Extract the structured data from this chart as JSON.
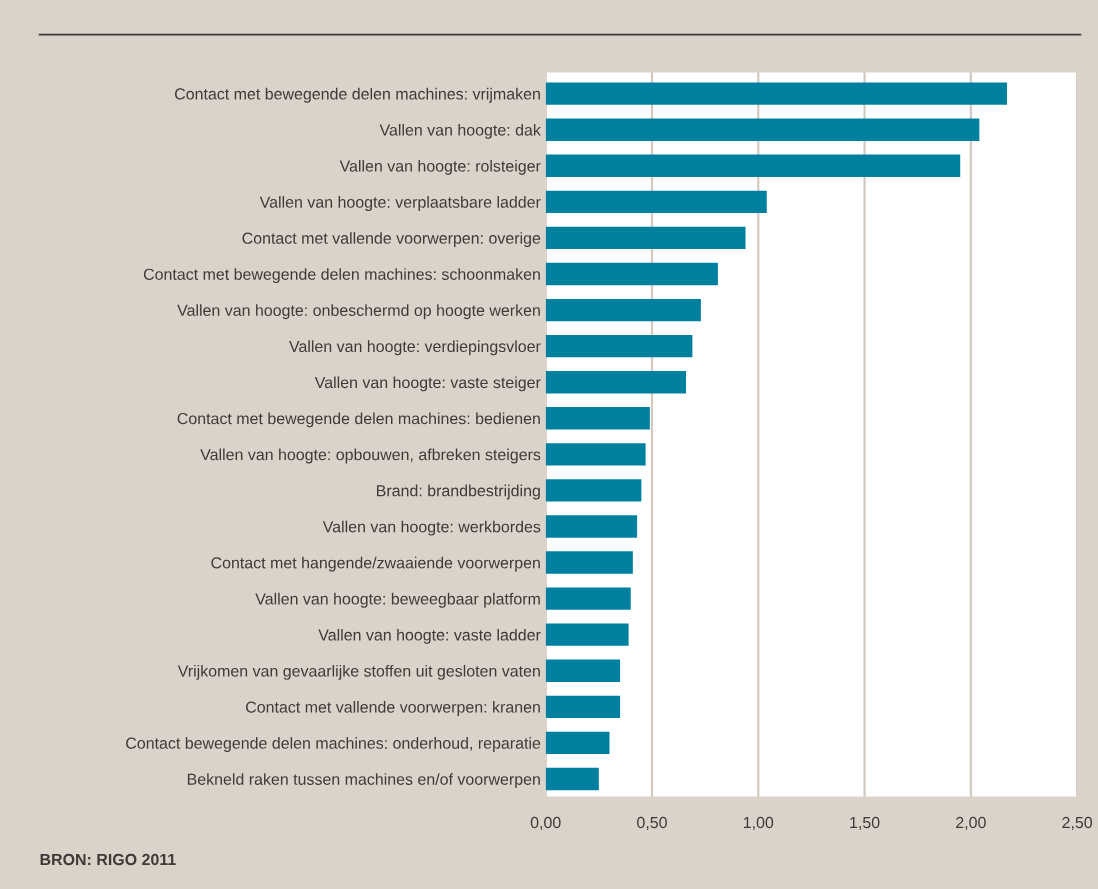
{
  "chart_data": {
    "type": "bar",
    "orientation": "horizontal",
    "color": "#00809f",
    "categories": [
      "Contact met bewegende delen machines: vrijmaken",
      "Vallen van hoogte: dak",
      "Vallen van hoogte: rolsteiger",
      "Vallen van hoogte: verplaatsbare ladder",
      "Contact met vallende voorwerpen: overige",
      "Contact met bewegende delen machines: schoonmaken",
      "Vallen van hoogte: onbeschermd op hoogte werken",
      "Vallen van hoogte: verdiepingsvloer",
      "Vallen van hoogte: vaste steiger",
      "Contact met bewegende delen machines: bedienen",
      "Vallen van hoogte: opbouwen, afbreken steigers",
      "Brand: brandbestrijding",
      "Vallen van hoogte: werkbordes",
      "Contact met hangende/zwaaiende voorwerpen",
      "Vallen van hoogte: beweegbaar platform",
      "Vallen van hoogte: vaste ladder",
      "Vrijkomen van gevaarlijke stoffen uit gesloten vaten",
      "Contact met vallende voorwerpen: kranen",
      "Contact bewegende delen machines: onderhoud, reparatie",
      "Bekneld raken tussen machines en/of voorwerpen"
    ],
    "values": [
      2.17,
      2.04,
      1.95,
      1.04,
      0.94,
      0.81,
      0.73,
      0.69,
      0.66,
      0.49,
      0.47,
      0.45,
      0.43,
      0.41,
      0.4,
      0.39,
      0.35,
      0.35,
      0.3,
      0.25
    ],
    "xlim": [
      0,
      2.5
    ],
    "xticks": [
      {
        "value": 0,
        "label": "0,00"
      },
      {
        "value": 0.5,
        "label": "0,50"
      },
      {
        "value": 1,
        "label": "1,00"
      },
      {
        "value": 1.5,
        "label": "1,50"
      },
      {
        "value": 2,
        "label": "2,00"
      },
      {
        "value": 2.5,
        "label": "2,50"
      }
    ],
    "grid": "x",
    "legend": false,
    "annotations": [
      "BRON: RIGO 2011"
    ]
  }
}
